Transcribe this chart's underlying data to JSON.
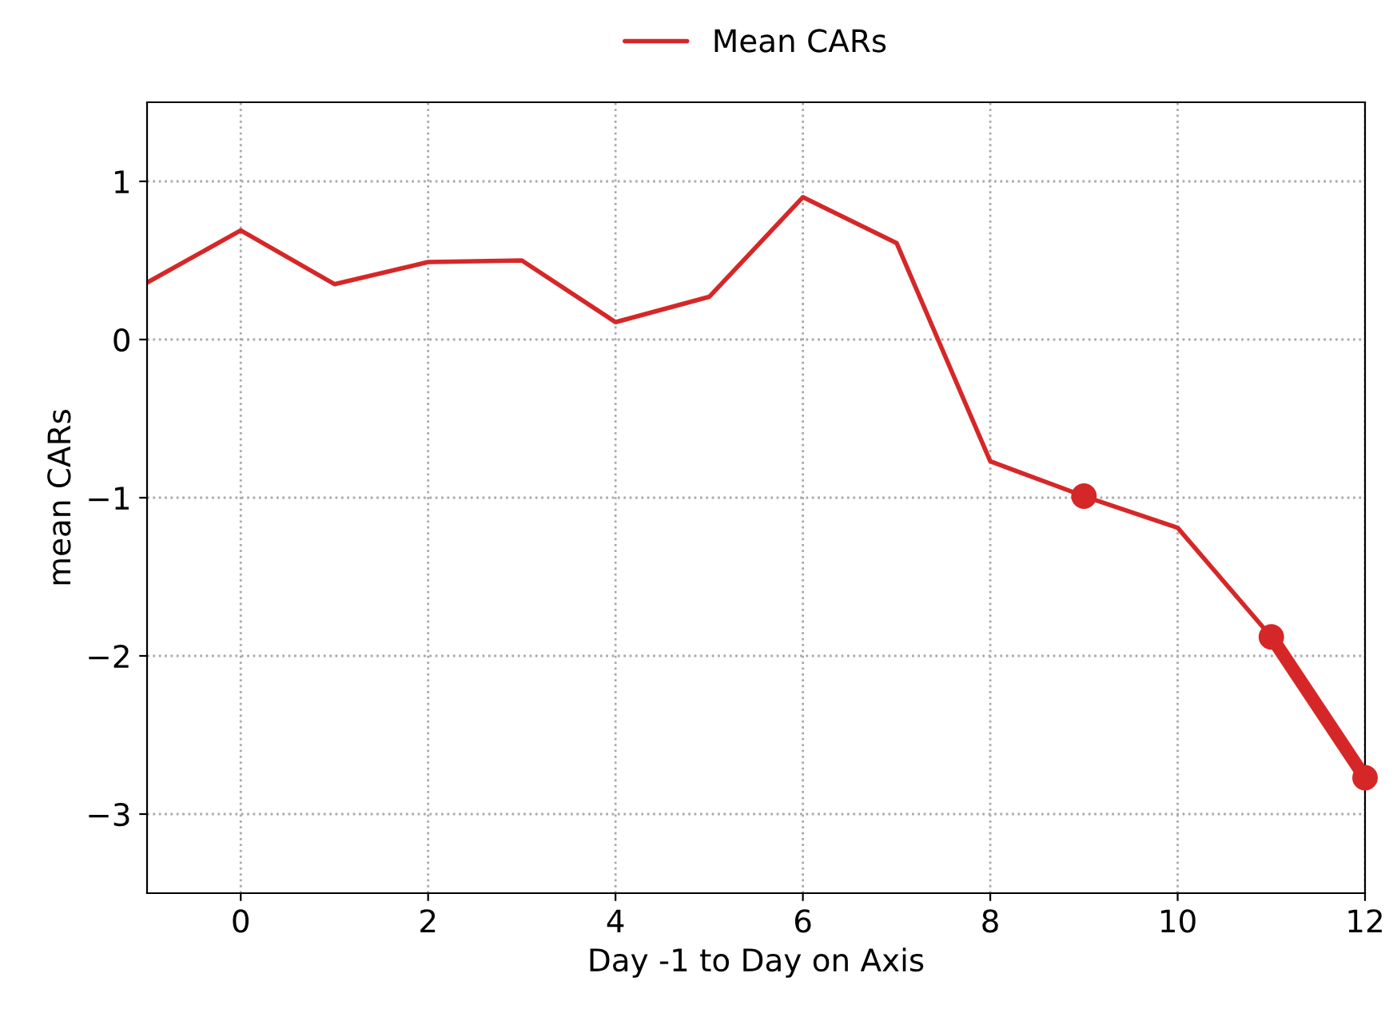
{
  "chart_data": {
    "type": "line",
    "xlabel": "Day -1 to Day on Axis",
    "ylabel": "mean CARs",
    "x": [
      -1,
      0,
      1,
      2,
      3,
      4,
      5,
      6,
      7,
      8,
      9,
      10,
      11,
      12
    ],
    "series": [
      {
        "name": "Mean CARs",
        "color": "#d62728",
        "values": [
          0.36,
          0.69,
          0.35,
          0.49,
          0.5,
          0.11,
          0.27,
          0.9,
          0.61,
          -0.77,
          -0.99,
          -1.19,
          -1.88,
          -2.77
        ]
      },
      {
        "type": "scatter",
        "marker": "circle",
        "color": "#d62728",
        "x": [
          9,
          11,
          12
        ],
        "values": [
          -0.99,
          -1.88,
          -2.77
        ]
      },
      {
        "type": "line",
        "color": "#d62728",
        "x": [
          11,
          12
        ],
        "values": [
          -1.88,
          -2.77
        ]
      }
    ],
    "xlim": [
      -1,
      12
    ],
    "ylim": [
      -3.5,
      1.5
    ],
    "xticks": [
      0,
      2,
      4,
      6,
      8,
      10,
      12
    ],
    "yticks": [
      -3,
      -2,
      -1,
      0,
      1
    ],
    "grid": true,
    "legend": "top",
    "marker": "none",
    "line_style": "solid"
  }
}
